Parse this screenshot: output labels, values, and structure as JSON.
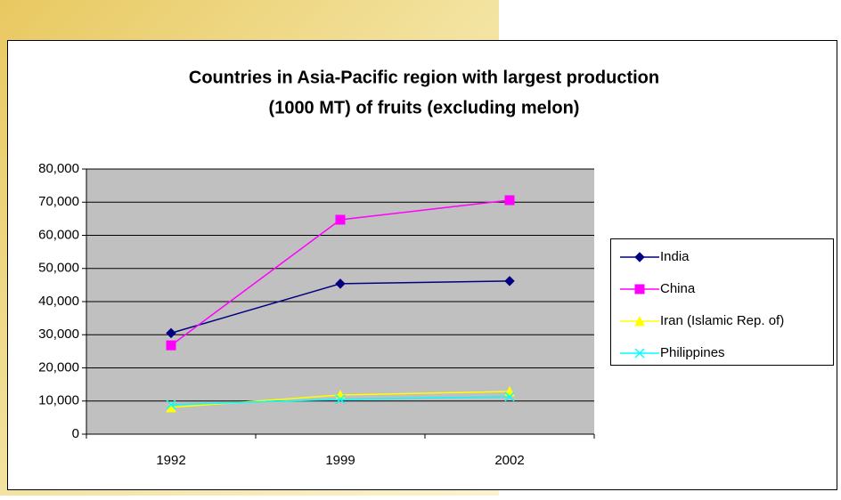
{
  "chart_data": {
    "type": "line",
    "title": "Countries in Asia-Pacific region with largest production (1000 MT) of fruits (excluding melon)",
    "categories": [
      "1992",
      "1999",
      "2002"
    ],
    "series": [
      {
        "name": "India",
        "color": "#000080",
        "marker": "diamond",
        "values": [
          30500,
          45400,
          46200
        ]
      },
      {
        "name": "China",
        "color": "#ff00ff",
        "marker": "square",
        "values": [
          26800,
          64700,
          70600
        ]
      },
      {
        "name": "Iran (Islamic Rep. of)",
        "color": "#ffff00",
        "marker": "triangle",
        "values": [
          8100,
          11800,
          12900
        ]
      },
      {
        "name": "Philippines",
        "color": "#00ffff",
        "marker": "x",
        "values": [
          8900,
          10500,
          11300
        ]
      }
    ],
    "ylim": [
      0,
      80000
    ],
    "yticks": [
      0,
      {
        "value": 10000,
        "label": "10,000"
      },
      {
        "value": 20000,
        "label": "20,000"
      },
      {
        "value": 30000,
        "label": "30,000"
      },
      {
        "value": 40000,
        "label": "40,000"
      },
      {
        "value": 50000,
        "label": "50,000"
      },
      {
        "value": 60000,
        "label": "60,000"
      },
      {
        "value": 70000,
        "label": "70,000"
      },
      {
        "value": 80000,
        "label": "80,000"
      }
    ],
    "grid": true,
    "legend": "right"
  }
}
